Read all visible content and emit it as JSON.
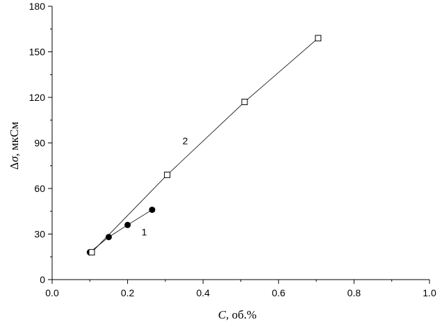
{
  "chart_data": {
    "type": "scatter",
    "title": "",
    "xlabel_italic": "C",
    "xlabel_rest": ", об.%",
    "ylabel_prefix": "Δ",
    "ylabel_italic": "σ",
    "ylabel_rest": ",  мкСм",
    "xlim": [
      0.0,
      1.0
    ],
    "ylim": [
      0,
      180
    ],
    "xticks": [
      0.0,
      0.2,
      0.4,
      0.6,
      0.8,
      1.0
    ],
    "xtick_labels": [
      "0.0",
      "0.2",
      "0.4",
      "0.6",
      "0.8",
      "1.0"
    ],
    "yticks": [
      0,
      30,
      60,
      90,
      120,
      150,
      180
    ],
    "ytick_labels": [
      "0",
      "30",
      "60",
      "90",
      "120",
      "150",
      "180"
    ],
    "grid": false,
    "legend": "none",
    "series": [
      {
        "label": "1",
        "marker": "filled-circle",
        "color": "#000000",
        "x": [
          0.1,
          0.15,
          0.2,
          0.265
        ],
        "y": [
          18,
          28,
          36,
          46
        ]
      },
      {
        "label": "2",
        "marker": "open-square",
        "color": "#000000",
        "x": [
          0.105,
          0.305,
          0.51,
          0.705
        ],
        "y": [
          18,
          69,
          117,
          159
        ]
      }
    ]
  }
}
